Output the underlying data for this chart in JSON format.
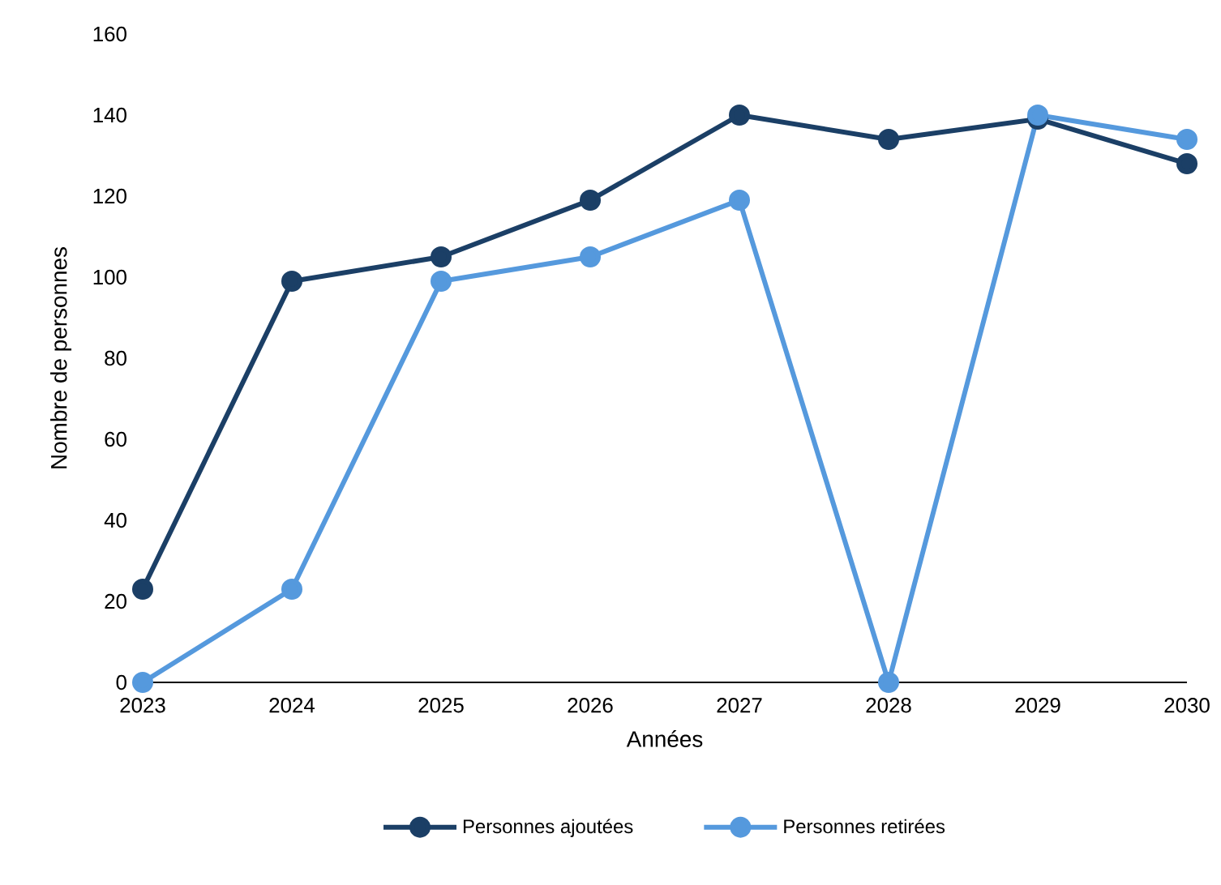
{
  "chart_data": {
    "type": "line",
    "xlabel": "Années",
    "ylabel": "Nombre de personnes",
    "x": [
      2023,
      2024,
      2025,
      2026,
      2027,
      2028,
      2029,
      2030
    ],
    "series": [
      {
        "name": "Personnes ajoutées",
        "color": "#1b3f66",
        "values": [
          23,
          99,
          105,
          119,
          140,
          134,
          139,
          128
        ]
      },
      {
        "name": "Personnes retirées",
        "color": "#5599dd",
        "values": [
          0,
          23,
          99,
          105,
          119,
          0,
          140,
          134
        ]
      }
    ],
    "xlim": [
      2023,
      2030
    ],
    "xticks": [
      2023,
      2024,
      2025,
      2026,
      2027,
      2028,
      2029,
      2030
    ],
    "ylim": [
      0,
      160
    ],
    "yticks": [
      0,
      20,
      40,
      60,
      80,
      100,
      120,
      140,
      160
    ],
    "legend": "bottom",
    "marker": "circle",
    "line_style": "solid"
  }
}
